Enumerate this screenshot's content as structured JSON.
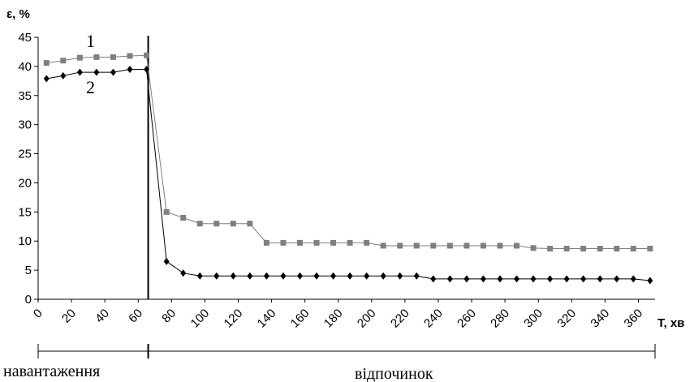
{
  "chart_data": {
    "type": "line",
    "ylabel": "ε, %",
    "xlabel": "T, хв",
    "ylim": [
      0,
      45
    ],
    "xlim": [
      0,
      370
    ],
    "y_ticks": [
      "0",
      "5",
      "10",
      "15",
      "20",
      "25",
      "30",
      "35",
      "40",
      "45"
    ],
    "x_ticks": [
      "0",
      "20",
      "40",
      "60",
      "80",
      "100",
      "120",
      "140",
      "160",
      "180",
      "200",
      "220",
      "240",
      "260",
      "280",
      "300",
      "320",
      "340",
      "360"
    ],
    "grid": false,
    "load_end_x": 66,
    "series": [
      {
        "name": "1",
        "marker": "square",
        "color": "#7f7f7f",
        "points": [
          [
            5,
            40.6
          ],
          [
            15,
            41.0
          ],
          [
            25,
            41.5
          ],
          [
            35,
            41.6
          ],
          [
            45,
            41.6
          ],
          [
            55,
            41.8
          ],
          [
            65,
            41.9
          ],
          [
            77,
            15.0
          ],
          [
            87,
            14.0
          ],
          [
            97,
            13.0
          ],
          [
            107,
            13.0
          ],
          [
            117,
            13.0
          ],
          [
            127,
            13.0
          ],
          [
            137,
            9.7
          ],
          [
            147,
            9.7
          ],
          [
            157,
            9.7
          ],
          [
            167,
            9.7
          ],
          [
            177,
            9.7
          ],
          [
            187,
            9.7
          ],
          [
            197,
            9.7
          ],
          [
            207,
            9.2
          ],
          [
            217,
            9.2
          ],
          [
            227,
            9.2
          ],
          [
            237,
            9.2
          ],
          [
            247,
            9.2
          ],
          [
            257,
            9.2
          ],
          [
            267,
            9.2
          ],
          [
            277,
            9.2
          ],
          [
            287,
            9.2
          ],
          [
            297,
            8.8
          ],
          [
            307,
            8.7
          ],
          [
            317,
            8.7
          ],
          [
            327,
            8.7
          ],
          [
            337,
            8.7
          ],
          [
            347,
            8.7
          ],
          [
            357,
            8.7
          ],
          [
            367,
            8.7
          ]
        ]
      },
      {
        "name": "2",
        "marker": "diamond",
        "color": "#000000",
        "points": [
          [
            5,
            37.9
          ],
          [
            15,
            38.4
          ],
          [
            25,
            39.0
          ],
          [
            35,
            39.0
          ],
          [
            45,
            39.0
          ],
          [
            55,
            39.5
          ],
          [
            65,
            39.5
          ],
          [
            77,
            6.5
          ],
          [
            87,
            4.5
          ],
          [
            97,
            4.0
          ],
          [
            107,
            4.0
          ],
          [
            117,
            4.0
          ],
          [
            127,
            4.0
          ],
          [
            137,
            4.0
          ],
          [
            147,
            4.0
          ],
          [
            157,
            4.0
          ],
          [
            167,
            4.0
          ],
          [
            177,
            4.0
          ],
          [
            187,
            4.0
          ],
          [
            197,
            4.0
          ],
          [
            207,
            4.0
          ],
          [
            217,
            4.0
          ],
          [
            227,
            4.0
          ],
          [
            237,
            3.5
          ],
          [
            247,
            3.5
          ],
          [
            257,
            3.5
          ],
          [
            267,
            3.5
          ],
          [
            277,
            3.5
          ],
          [
            287,
            3.5
          ],
          [
            297,
            3.5
          ],
          [
            307,
            3.5
          ],
          [
            317,
            3.5
          ],
          [
            327,
            3.5
          ],
          [
            337,
            3.5
          ],
          [
            347,
            3.5
          ],
          [
            357,
            3.5
          ],
          [
            367,
            3.2
          ]
        ]
      }
    ],
    "curve_labels": [
      "1",
      "2"
    ],
    "phases": {
      "load": "навантаження",
      "rest": "відпочинок"
    }
  }
}
